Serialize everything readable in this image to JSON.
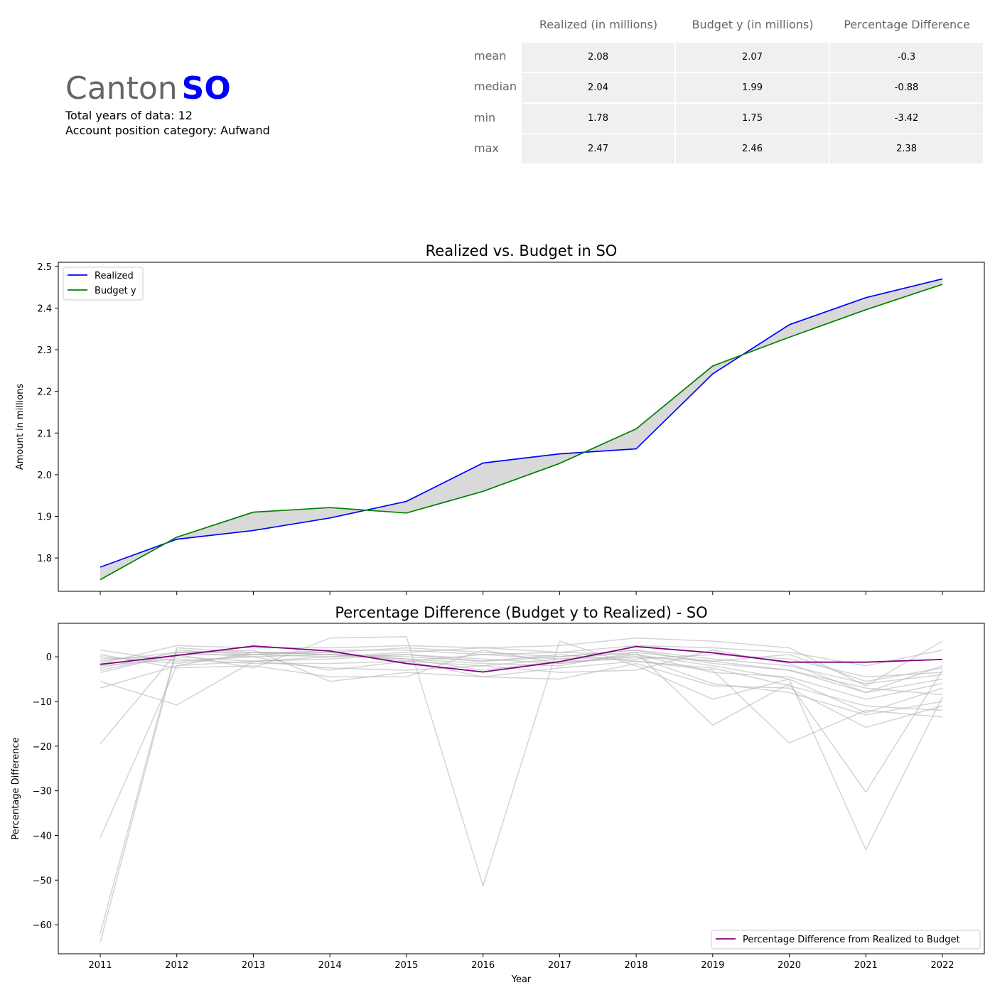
{
  "header": {
    "canton_word": "Canton",
    "canton_code": "SO",
    "total_years": "Total years of data: 12",
    "category": "Account position category: Aufwand"
  },
  "stats_table": {
    "columns": [
      "Realized (in millions)",
      "Budget y (in millions)",
      "Percentage Difference"
    ],
    "rows": [
      {
        "label": "mean",
        "values": [
          "2.08",
          "2.07",
          "-0.3"
        ]
      },
      {
        "label": "median",
        "values": [
          "2.04",
          "1.99",
          "-0.88"
        ]
      },
      {
        "label": "min",
        "values": [
          "1.78",
          "1.75",
          "-3.42"
        ]
      },
      {
        "label": "max",
        "values": [
          "2.47",
          "2.46",
          "2.38"
        ]
      }
    ]
  },
  "colors": {
    "realized": "#0000ff",
    "budget": "#008000",
    "pct": "#800080",
    "background_lines": "#b0b0b0",
    "fill": "#d9d9d9"
  },
  "chart_data": [
    {
      "type": "line",
      "title": "Realized vs. Budget in SO",
      "xlabel": "",
      "ylabel": "Amount in millions",
      "x": [
        2011,
        2012,
        2013,
        2014,
        2015,
        2016,
        2017,
        2018,
        2019,
        2020,
        2021,
        2022
      ],
      "series": [
        {
          "name": "Realized",
          "values": [
            1.778,
            1.845,
            1.866,
            1.896,
            1.936,
            2.028,
            2.05,
            2.062,
            2.242,
            2.36,
            2.425,
            2.47
          ]
        },
        {
          "name": "Budget y",
          "values": [
            1.748,
            1.85,
            1.91,
            1.921,
            1.908,
            1.96,
            2.027,
            2.11,
            2.261,
            2.33,
            2.396,
            2.457
          ]
        }
      ],
      "fill_between": true,
      "ylim": [
        1.72,
        2.51
      ],
      "yticks": [
        1.8,
        1.9,
        2.0,
        2.1,
        2.2,
        2.3,
        2.4,
        2.5
      ],
      "legend": "top-left",
      "grid": false
    },
    {
      "type": "line",
      "title": "Percentage Difference (Budget y to Realized) - SO",
      "xlabel": "Year",
      "ylabel": "Percentage Difference",
      "x": [
        2011,
        2012,
        2013,
        2014,
        2015,
        2016,
        2017,
        2018,
        2019,
        2020,
        2021,
        2022
      ],
      "xticks": [
        "2011",
        "2012",
        "2013",
        "2014",
        "2015",
        "2016",
        "2017",
        "2018",
        "2019",
        "2020",
        "2021",
        "2022"
      ],
      "series": [
        {
          "name": "Percentage Difference from Realized to Budget",
          "values": [
            -1.7,
            0.3,
            2.4,
            1.3,
            -1.5,
            -3.4,
            -1.1,
            2.3,
            0.9,
            -1.2,
            -1.2,
            -0.6
          ]
        }
      ],
      "background_series": [
        [
          -64,
          1.5,
          0.5,
          1.0,
          -1.0,
          -2.0,
          -0.5,
          1.0,
          -1.0,
          -3.0,
          -8.0,
          -5.0
        ],
        [
          -62,
          2.0,
          1.0,
          0.5,
          0.0,
          -1.0,
          0.0,
          1.5,
          -0.5,
          -2.0,
          -6.0,
          -4.0
        ],
        [
          -40.5,
          -2.0,
          -1.0,
          0.0,
          1.0,
          2.0,
          1.0,
          0.5,
          -2.0,
          -5.0,
          -12.5,
          -7.0
        ],
        [
          -19.5,
          1.0,
          0.0,
          -3.0,
          -1.0,
          0.5,
          -0.5,
          0.0,
          -6.0,
          -8.0,
          -13.0,
          -10.0
        ],
        [
          -7.0,
          -2.0,
          1.0,
          0.5,
          -0.5,
          -1.5,
          -2.0,
          1.0,
          -15.3,
          -6.0,
          -30.3,
          -3.0
        ],
        [
          -5.5,
          -10.8,
          -1.0,
          -0.5,
          0.5,
          -1.0,
          0.5,
          -1.0,
          -3.0,
          -19.3,
          -12.0,
          -13.5
        ],
        [
          -3.5,
          0.5,
          -2.5,
          4.2,
          4.5,
          -51.3,
          3.5,
          -2.0,
          -9.5,
          -5.0,
          -43.2,
          -9.0
        ],
        [
          -2.5,
          1.0,
          1.5,
          -5.5,
          -3.5,
          -4.5,
          -5.0,
          -1.5,
          -6.5,
          -7.0,
          -15.8,
          -11.0
        ],
        [
          -1.5,
          2.5,
          2.0,
          2.0,
          2.5,
          2.0,
          2.5,
          4.2,
          3.5,
          2.0,
          -6.5,
          3.5
        ],
        [
          -0.5,
          0.0,
          -1.0,
          -2.5,
          -3.0,
          -2.0,
          -3.5,
          -3.0,
          1.5,
          -1.5,
          -8.0,
          -2.0
        ],
        [
          0.0,
          -1.5,
          0.5,
          1.5,
          1.5,
          0.5,
          1.0,
          2.5,
          2.0,
          1.0,
          -2.0,
          1.5
        ],
        [
          0.5,
          -2.5,
          -2.0,
          -4.5,
          -4.5,
          1.5,
          -1.5,
          0.5,
          -3.5,
          -4.5,
          -9.5,
          -6.0
        ],
        [
          1.5,
          -1.0,
          0.0,
          0.5,
          -0.5,
          -3.0,
          -1.0,
          -0.5,
          0.5,
          -0.5,
          -4.5,
          -3.5
        ],
        [
          -1.0,
          1.0,
          1.0,
          1.0,
          2.0,
          1.0,
          0.0,
          1.5,
          -1.5,
          -3.0,
          -7.0,
          -8.5
        ],
        [
          -2.0,
          -0.5,
          -1.5,
          -1.5,
          -1.0,
          -4.5,
          -2.5,
          -1.0,
          -2.5,
          -6.5,
          -11.0,
          -12.0
        ],
        [
          -3.0,
          0.5,
          0.5,
          0.0,
          0.5,
          -0.5,
          -1.5,
          0.0,
          -1.0,
          0.5,
          -5.5,
          -2.5
        ]
      ],
      "ylim": [
        -66.5,
        7.5
      ],
      "yticks": [
        0,
        -10,
        -20,
        -30,
        -40,
        -50,
        -60
      ],
      "legend": "bottom-right",
      "grid": false
    }
  ]
}
